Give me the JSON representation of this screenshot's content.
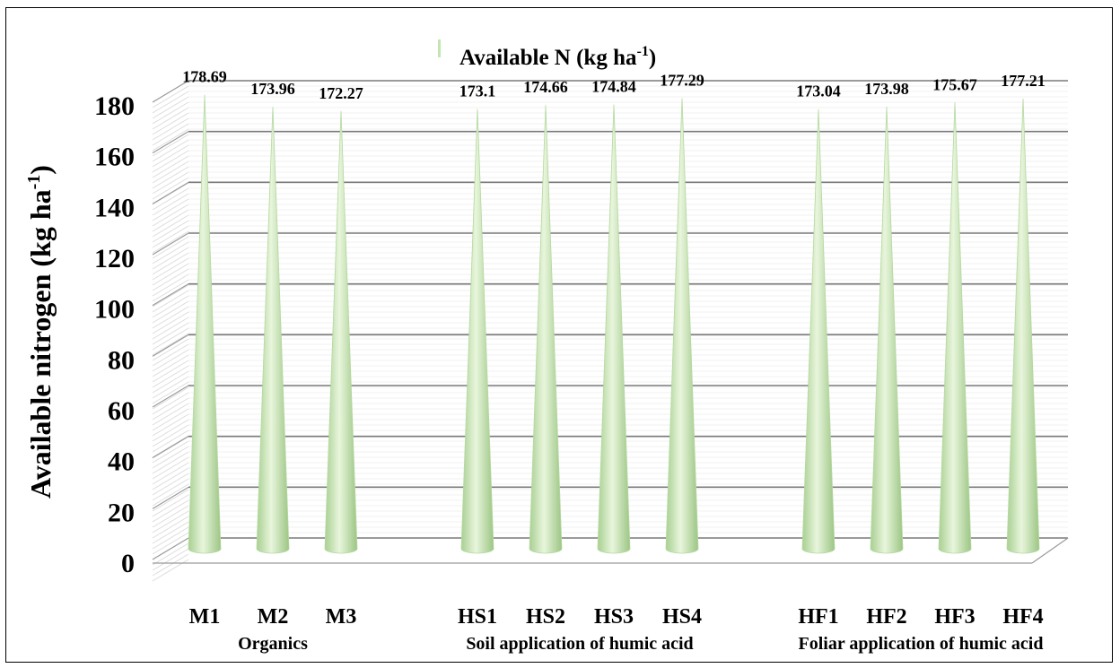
{
  "chart_data": {
    "type": "bar",
    "title": "Available N (kg ha",
    "title_sup": "-1",
    "title_tail": ")",
    "ylabel": "Available nitrogen (kg ha",
    "ylabel_sup": "-1",
    "ylabel_tail": ")",
    "xlabel": "",
    "ylim": [
      0,
      180
    ],
    "yticks": [
      0,
      20,
      40,
      60,
      80,
      100,
      120,
      140,
      160,
      180
    ],
    "grid": true,
    "bar_shape": "cone",
    "series_color": "#c4e6b0",
    "categories": [
      "M1",
      "M2",
      "M3",
      "HS1",
      "HS2",
      "HS3",
      "HS4",
      "HF1",
      "HF2",
      "HF3",
      "HF4"
    ],
    "values": [
      178.69,
      173.96,
      172.27,
      173.1,
      174.66,
      174.84,
      177.29,
      173.04,
      173.98,
      175.67,
      177.21
    ],
    "value_labels": [
      "178.69",
      "173.96",
      "172.27",
      "173.1",
      "174.66",
      "174.84",
      "177.29",
      "173.04",
      "173.98",
      "175.67",
      "177.21"
    ],
    "groups": [
      {
        "label": "Organics",
        "categories": [
          "M1",
          "M2",
          "M3"
        ]
      },
      {
        "label": "Soil application of humic acid",
        "categories": [
          "HS1",
          "HS2",
          "HS3",
          "HS4"
        ]
      },
      {
        "label": "Foliar application of humic acid",
        "categories": [
          "HF1",
          "HF2",
          "HF3",
          "HF4"
        ]
      }
    ]
  }
}
